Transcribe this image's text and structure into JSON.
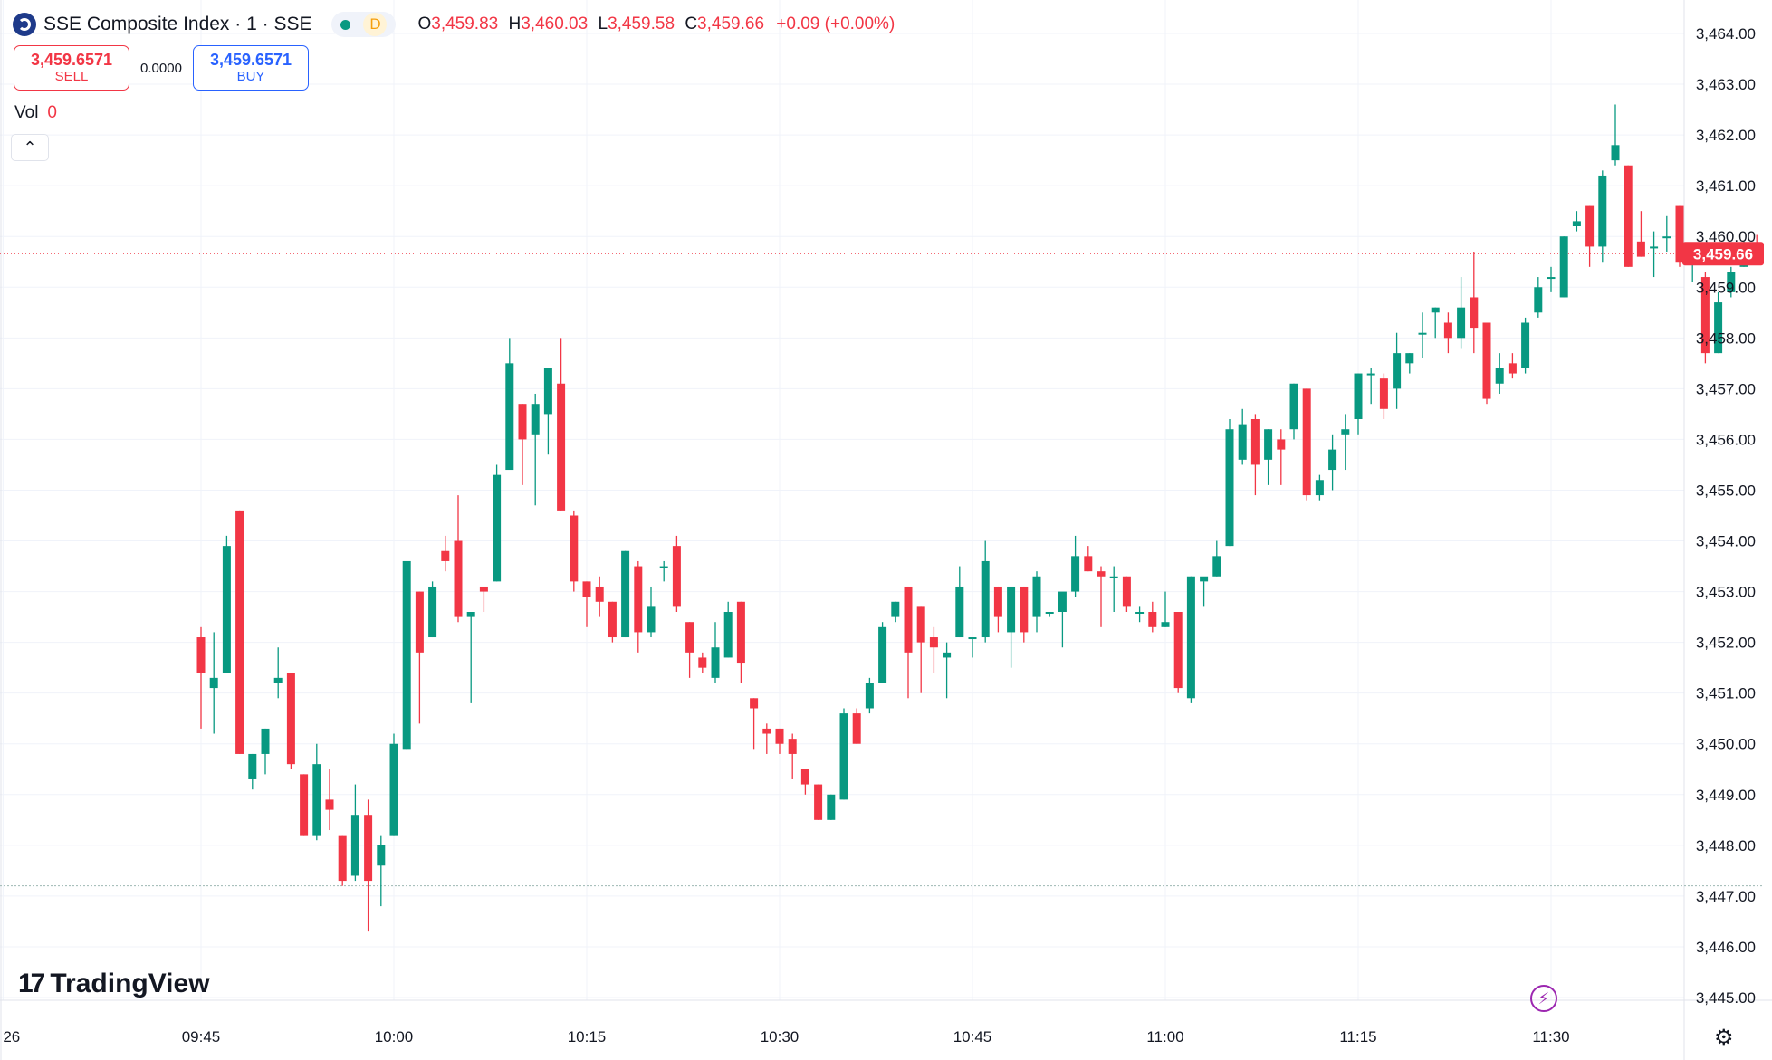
{
  "legend": {
    "symbol": "SSE Composite Index · 1 · SSE",
    "status_letter": "D",
    "open_label": "O",
    "open": "3,459.83",
    "high_label": "H",
    "high": "3,460.03",
    "low_label": "L",
    "low": "3,459.58",
    "close_label": "C",
    "close": "3,459.66",
    "change": "+0.09 (+0.00%)"
  },
  "trade": {
    "sell_price": "3,459.6571",
    "sell_label": "SELL",
    "spread": "0.0000",
    "buy_price": "3,459.6571",
    "buy_label": "BUY"
  },
  "volume": {
    "label": "Vol",
    "value": "0"
  },
  "watermark": "TradingView",
  "colors": {
    "up": "#089981",
    "down": "#f23645",
    "grid": "#f0f3fa",
    "text": "#131722"
  },
  "chart_data": {
    "type": "candlestick",
    "ylim": [
      3444.4,
      3464.3
    ],
    "y_ticks": [
      "3,445.00",
      "3,446.00",
      "3,447.00",
      "3,448.00",
      "3,449.00",
      "3,450.00",
      "3,451.00",
      "3,452.00",
      "3,453.00",
      "3,454.00",
      "3,455.00",
      "3,456.00",
      "3,457.00",
      "3,458.00",
      "3,459.00",
      "3,460.00",
      "3,461.00",
      "3,462.00",
      "3,463.00",
      "3,464.00"
    ],
    "x_ticks": [
      {
        "label": "26",
        "bar": -15.4
      },
      {
        "label": "09:45",
        "bar": 0
      },
      {
        "label": "10:00",
        "bar": 15
      },
      {
        "label": "10:15",
        "bar": 30
      },
      {
        "label": "10:30",
        "bar": 45
      },
      {
        "label": "10:45",
        "bar": 60
      },
      {
        "label": "11:00",
        "bar": 75
      },
      {
        "label": "11:15",
        "bar": 90
      },
      {
        "label": "11:30",
        "bar": 105
      }
    ],
    "last_price": 3459.66,
    "last_price_label": "3,459.66",
    "prev_close_line": 3447.2,
    "candles": [
      {
        "o": 3452.1,
        "h": 3452.3,
        "l": 3450.3,
        "c": 3451.4
      },
      {
        "o": 3451.1,
        "h": 3452.2,
        "l": 3450.2,
        "c": 3451.3
      },
      {
        "o": 3451.4,
        "h": 3454.1,
        "l": 3451.4,
        "c": 3453.9
      },
      {
        "o": 3454.6,
        "h": 3454.6,
        "l": 3449.8,
        "c": 3449.8
      },
      {
        "o": 3449.3,
        "h": 3449.8,
        "l": 3449.1,
        "c": 3449.8
      },
      {
        "o": 3449.8,
        "h": 3450.3,
        "l": 3449.4,
        "c": 3450.3
      },
      {
        "o": 3451.2,
        "h": 3451.9,
        "l": 3450.9,
        "c": 3451.3
      },
      {
        "o": 3451.4,
        "h": 3451.4,
        "l": 3449.5,
        "c": 3449.6
      },
      {
        "o": 3449.4,
        "h": 3449.4,
        "l": 3448.2,
        "c": 3448.2
      },
      {
        "o": 3448.2,
        "h": 3450.0,
        "l": 3448.1,
        "c": 3449.6
      },
      {
        "o": 3448.9,
        "h": 3449.5,
        "l": 3448.3,
        "c": 3448.7
      },
      {
        "o": 3448.2,
        "h": 3448.2,
        "l": 3447.2,
        "c": 3447.3
      },
      {
        "o": 3447.4,
        "h": 3449.2,
        "l": 3447.3,
        "c": 3448.6
      },
      {
        "o": 3448.6,
        "h": 3448.9,
        "l": 3446.3,
        "c": 3447.3
      },
      {
        "o": 3447.6,
        "h": 3448.2,
        "l": 3446.8,
        "c": 3448.0
      },
      {
        "o": 3448.2,
        "h": 3450.2,
        "l": 3448.2,
        "c": 3450.0
      },
      {
        "o": 3449.9,
        "h": 3453.6,
        "l": 3449.9,
        "c": 3453.6
      },
      {
        "o": 3453.0,
        "h": 3453.0,
        "l": 3450.4,
        "c": 3451.8
      },
      {
        "o": 3452.1,
        "h": 3453.2,
        "l": 3452.1,
        "c": 3453.1
      },
      {
        "o": 3453.8,
        "h": 3454.1,
        "l": 3453.4,
        "c": 3453.6
      },
      {
        "o": 3454.0,
        "h": 3454.9,
        "l": 3452.4,
        "c": 3452.5
      },
      {
        "o": 3452.5,
        "h": 3452.6,
        "l": 3450.8,
        "c": 3452.6
      },
      {
        "o": 3453.1,
        "h": 3453.1,
        "l": 3452.6,
        "c": 3453.0
      },
      {
        "o": 3453.2,
        "h": 3455.5,
        "l": 3453.2,
        "c": 3455.3
      },
      {
        "o": 3455.4,
        "h": 3458.0,
        "l": 3455.4,
        "c": 3457.5
      },
      {
        "o": 3456.7,
        "h": 3456.7,
        "l": 3455.1,
        "c": 3456.0
      },
      {
        "o": 3456.1,
        "h": 3456.9,
        "l": 3454.7,
        "c": 3456.7
      },
      {
        "o": 3456.5,
        "h": 3457.4,
        "l": 3455.7,
        "c": 3457.4
      },
      {
        "o": 3457.1,
        "h": 3458.0,
        "l": 3454.6,
        "c": 3454.6
      },
      {
        "o": 3454.5,
        "h": 3454.6,
        "l": 3453.0,
        "c": 3453.2
      },
      {
        "o": 3453.2,
        "h": 3453.2,
        "l": 3452.3,
        "c": 3452.9
      },
      {
        "o": 3453.1,
        "h": 3453.3,
        "l": 3452.5,
        "c": 3452.8
      },
      {
        "o": 3452.8,
        "h": 3452.8,
        "l": 3452.0,
        "c": 3452.1
      },
      {
        "o": 3452.1,
        "h": 3453.8,
        "l": 3452.1,
        "c": 3453.8
      },
      {
        "o": 3453.5,
        "h": 3453.6,
        "l": 3451.8,
        "c": 3452.2
      },
      {
        "o": 3452.2,
        "h": 3453.1,
        "l": 3452.1,
        "c": 3452.7
      },
      {
        "o": 3453.5,
        "h": 3453.6,
        "l": 3453.2,
        "c": 3453.5
      },
      {
        "o": 3453.9,
        "h": 3454.1,
        "l": 3452.6,
        "c": 3452.7
      },
      {
        "o": 3452.4,
        "h": 3452.4,
        "l": 3451.3,
        "c": 3451.8
      },
      {
        "o": 3451.7,
        "h": 3451.8,
        "l": 3451.4,
        "c": 3451.5
      },
      {
        "o": 3451.3,
        "h": 3452.4,
        "l": 3451.2,
        "c": 3451.9
      },
      {
        "o": 3451.7,
        "h": 3452.8,
        "l": 3451.7,
        "c": 3452.6
      },
      {
        "o": 3452.8,
        "h": 3452.8,
        "l": 3451.2,
        "c": 3451.6
      },
      {
        "o": 3450.9,
        "h": 3450.9,
        "l": 3449.9,
        "c": 3450.7
      },
      {
        "o": 3450.3,
        "h": 3450.4,
        "l": 3449.8,
        "c": 3450.2
      },
      {
        "o": 3450.3,
        "h": 3450.3,
        "l": 3449.8,
        "c": 3450.0
      },
      {
        "o": 3450.1,
        "h": 3450.2,
        "l": 3449.3,
        "c": 3449.8
      },
      {
        "o": 3449.5,
        "h": 3449.5,
        "l": 3449.0,
        "c": 3449.2
      },
      {
        "o": 3449.2,
        "h": 3449.2,
        "l": 3448.5,
        "c": 3448.5
      },
      {
        "o": 3448.5,
        "h": 3449.0,
        "l": 3448.5,
        "c": 3449.0
      },
      {
        "o": 3448.9,
        "h": 3450.7,
        "l": 3448.9,
        "c": 3450.6
      },
      {
        "o": 3450.6,
        "h": 3450.7,
        "l": 3450.0,
        "c": 3450.0
      },
      {
        "o": 3450.7,
        "h": 3451.3,
        "l": 3450.6,
        "c": 3451.2
      },
      {
        "o": 3451.2,
        "h": 3452.4,
        "l": 3451.2,
        "c": 3452.3
      },
      {
        "o": 3452.5,
        "h": 3452.8,
        "l": 3452.4,
        "c": 3452.8
      },
      {
        "o": 3453.1,
        "h": 3453.1,
        "l": 3450.9,
        "c": 3451.8
      },
      {
        "o": 3452.7,
        "h": 3452.7,
        "l": 3451.0,
        "c": 3452.0
      },
      {
        "o": 3452.1,
        "h": 3452.3,
        "l": 3451.4,
        "c": 3451.9
      },
      {
        "o": 3451.7,
        "h": 3452.0,
        "l": 3450.9,
        "c": 3451.8
      },
      {
        "o": 3452.1,
        "h": 3453.5,
        "l": 3452.1,
        "c": 3453.1
      },
      {
        "o": 3452.1,
        "h": 3452.1,
        "l": 3451.7,
        "c": 3452.1
      },
      {
        "o": 3452.1,
        "h": 3454.0,
        "l": 3452.0,
        "c": 3453.6
      },
      {
        "o": 3453.1,
        "h": 3453.1,
        "l": 3452.2,
        "c": 3452.5
      },
      {
        "o": 3452.2,
        "h": 3453.1,
        "l": 3451.5,
        "c": 3453.1
      },
      {
        "o": 3453.1,
        "h": 3453.1,
        "l": 3452.0,
        "c": 3452.2
      },
      {
        "o": 3452.5,
        "h": 3453.4,
        "l": 3452.2,
        "c": 3453.3
      },
      {
        "o": 3452.6,
        "h": 3452.6,
        "l": 3452.5,
        "c": 3452.6
      },
      {
        "o": 3452.6,
        "h": 3452.9,
        "l": 3451.9,
        "c": 3453.0
      },
      {
        "o": 3453.0,
        "h": 3454.1,
        "l": 3452.9,
        "c": 3453.7
      },
      {
        "o": 3453.7,
        "h": 3453.9,
        "l": 3453.4,
        "c": 3453.4
      },
      {
        "o": 3453.4,
        "h": 3453.5,
        "l": 3452.3,
        "c": 3453.3
      },
      {
        "o": 3453.3,
        "h": 3453.5,
        "l": 3452.6,
        "c": 3453.3
      },
      {
        "o": 3453.3,
        "h": 3453.3,
        "l": 3452.6,
        "c": 3452.7
      },
      {
        "o": 3452.6,
        "h": 3452.7,
        "l": 3452.4,
        "c": 3452.6
      },
      {
        "o": 3452.6,
        "h": 3452.8,
        "l": 3452.2,
        "c": 3452.3
      },
      {
        "o": 3452.3,
        "h": 3453.0,
        "l": 3452.3,
        "c": 3452.4
      },
      {
        "o": 3452.6,
        "h": 3452.6,
        "l": 3451.0,
        "c": 3451.1
      },
      {
        "o": 3450.9,
        "h": 3453.3,
        "l": 3450.8,
        "c": 3453.3
      },
      {
        "o": 3453.2,
        "h": 3453.2,
        "l": 3452.7,
        "c": 3453.3
      },
      {
        "o": 3453.3,
        "h": 3454.0,
        "l": 3453.3,
        "c": 3453.7
      },
      {
        "o": 3453.9,
        "h": 3456.4,
        "l": 3453.9,
        "c": 3456.2
      },
      {
        "o": 3455.6,
        "h": 3456.6,
        "l": 3455.5,
        "c": 3456.3
      },
      {
        "o": 3456.4,
        "h": 3456.5,
        "l": 3454.9,
        "c": 3455.5
      },
      {
        "o": 3455.6,
        "h": 3456.2,
        "l": 3455.1,
        "c": 3456.2
      },
      {
        "o": 3456.0,
        "h": 3456.2,
        "l": 3455.1,
        "c": 3455.8
      },
      {
        "o": 3456.2,
        "h": 3457.1,
        "l": 3456.0,
        "c": 3457.1
      },
      {
        "o": 3457.0,
        "h": 3457.0,
        "l": 3454.8,
        "c": 3454.9
      },
      {
        "o": 3454.9,
        "h": 3455.3,
        "l": 3454.8,
        "c": 3455.2
      },
      {
        "o": 3455.4,
        "h": 3456.1,
        "l": 3455.0,
        "c": 3455.8
      },
      {
        "o": 3456.1,
        "h": 3456.5,
        "l": 3455.4,
        "c": 3456.2
      },
      {
        "o": 3456.4,
        "h": 3457.3,
        "l": 3456.1,
        "c": 3457.3
      },
      {
        "o": 3457.3,
        "h": 3457.4,
        "l": 3456.7,
        "c": 3457.3
      },
      {
        "o": 3457.2,
        "h": 3457.3,
        "l": 3456.4,
        "c": 3456.6
      },
      {
        "o": 3457.0,
        "h": 3458.1,
        "l": 3456.6,
        "c": 3457.7
      },
      {
        "o": 3457.5,
        "h": 3457.7,
        "l": 3457.3,
        "c": 3457.7
      },
      {
        "o": 3458.1,
        "h": 3458.5,
        "l": 3457.6,
        "c": 3458.1
      },
      {
        "o": 3458.5,
        "h": 3458.6,
        "l": 3458.0,
        "c": 3458.6
      },
      {
        "o": 3458.3,
        "h": 3458.5,
        "l": 3457.7,
        "c": 3458.0
      },
      {
        "o": 3458.0,
        "h": 3459.2,
        "l": 3457.8,
        "c": 3458.6
      },
      {
        "o": 3458.8,
        "h": 3459.7,
        "l": 3457.7,
        "c": 3458.2
      },
      {
        "o": 3458.3,
        "h": 3458.3,
        "l": 3456.7,
        "c": 3456.8
      },
      {
        "o": 3457.1,
        "h": 3457.7,
        "l": 3456.9,
        "c": 3457.4
      },
      {
        "o": 3457.5,
        "h": 3457.7,
        "l": 3457.2,
        "c": 3457.3
      },
      {
        "o": 3457.4,
        "h": 3458.4,
        "l": 3457.3,
        "c": 3458.3
      },
      {
        "o": 3458.5,
        "h": 3459.2,
        "l": 3458.4,
        "c": 3459.0
      },
      {
        "o": 3459.2,
        "h": 3459.4,
        "l": 3458.9,
        "c": 3459.2
      },
      {
        "o": 3458.8,
        "h": 3460.0,
        "l": 3458.8,
        "c": 3460.0
      },
      {
        "o": 3460.2,
        "h": 3460.5,
        "l": 3460.1,
        "c": 3460.3
      },
      {
        "o": 3460.6,
        "h": 3460.6,
        "l": 3459.4,
        "c": 3459.8
      },
      {
        "o": 3459.8,
        "h": 3461.3,
        "l": 3459.5,
        "c": 3461.2
      },
      {
        "o": 3461.5,
        "h": 3462.6,
        "l": 3461.4,
        "c": 3461.8
      },
      {
        "o": 3461.4,
        "h": 3461.4,
        "l": 3459.4,
        "c": 3459.4
      },
      {
        "o": 3459.9,
        "h": 3460.5,
        "l": 3459.6,
        "c": 3459.6
      },
      {
        "o": 3459.8,
        "h": 3460.1,
        "l": 3459.2,
        "c": 3459.8
      },
      {
        "o": 3460.0,
        "h": 3460.4,
        "l": 3459.7,
        "c": 3460.0
      },
      {
        "o": 3460.6,
        "h": 3460.6,
        "l": 3459.4,
        "c": 3459.5
      },
      {
        "o": 3459.5,
        "h": 3459.7,
        "l": 3459.1,
        "c": 3459.6
      },
      {
        "o": 3459.2,
        "h": 3459.3,
        "l": 3457.5,
        "c": 3457.7
      },
      {
        "o": 3457.7,
        "h": 3458.9,
        "l": 3457.7,
        "c": 3458.7
      },
      {
        "o": 3458.9,
        "h": 3459.4,
        "l": 3458.8,
        "c": 3459.3
      },
      {
        "o": 3459.4,
        "h": 3459.9,
        "l": 3459.4,
        "c": 3459.6
      },
      {
        "o": 3459.83,
        "h": 3460.03,
        "l": 3459.58,
        "c": 3459.66
      }
    ]
  }
}
